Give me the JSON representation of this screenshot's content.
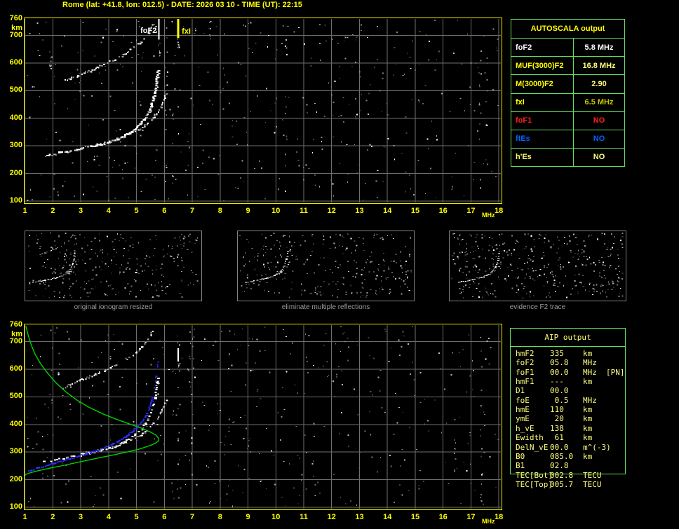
{
  "title": "Rome (lat: +41.8, lon: 012.5) - DATE: 2026 03 10 - TIME (UT): 22:15",
  "colors": {
    "background": "#000000",
    "accent_yellow": "#ffff00",
    "pale_yellow": "#ffff7f",
    "olive_yellow": "#c9c900",
    "red": "#ff2020",
    "blue": "#0066ff",
    "trace_blue": "#2b2bff",
    "profile_green": "#00d000",
    "table_border_green": "#62e062",
    "grid_gray": "#6f6f6f",
    "caption_gray": "#9c9c9c",
    "plot_border_yellow": "#ecec00"
  },
  "axes": {
    "x_ticks": [
      "1",
      "2",
      "3",
      "4",
      "5",
      "6",
      "7",
      "8",
      "9",
      "10",
      "11",
      "12",
      "13",
      "14",
      "15",
      "16",
      "17",
      "18"
    ],
    "x_unit": "MHz",
    "y_ticks": [
      "760",
      "700",
      "600",
      "500",
      "400",
      "300",
      "200",
      "100"
    ],
    "y_unit": "km"
  },
  "annotations": [
    {
      "label": "foF2",
      "f": 5.8,
      "color": "#ffffff",
      "side": "left"
    },
    {
      "label": "fxI",
      "f": 6.5,
      "color": "#ffff00",
      "side": "right"
    }
  ],
  "autoscala_table": {
    "title": "AUTOSCALA output",
    "rows": [
      {
        "label": "foF2",
        "value": "5.8 MHz",
        "label_color": "#ffffff",
        "value_color": "#ffffff"
      },
      {
        "label": "MUF(3000)F2",
        "value": "16.8 MHz",
        "label_color": "#ffff00",
        "value_color": "#ffff7f"
      },
      {
        "label": "M(3000)F2",
        "value": "2.90",
        "label_color": "#ffff00",
        "value_color": "#ffff7f"
      },
      {
        "label": "fxI",
        "value": "6.5 MHz",
        "label_color": "#ffff00",
        "value_color": "#c9c900"
      },
      {
        "label": "foF1",
        "value": "NO",
        "label_color": "#ff2020",
        "value_color": "#ff2020"
      },
      {
        "label": "ftEs",
        "value": "NO",
        "label_color": "#0066ff",
        "value_color": "#0066ff"
      },
      {
        "label": "h'Es",
        "value": "NO",
        "label_color": "#ffff66",
        "value_color": "#ffff7f"
      }
    ]
  },
  "thumbnails": [
    {
      "caption": "original ionogram resized"
    },
    {
      "caption": "eliminate multiple reflections"
    },
    {
      "caption": "evidence F2 trace"
    }
  ],
  "aip_table": {
    "title": "AIP output",
    "rows": [
      {
        "label": "hmF2",
        "value": "335",
        "unit": "km",
        "extra": ""
      },
      {
        "label": "foF2",
        "value": "05.8",
        "unit": "MHz",
        "extra": ""
      },
      {
        "label": "foF1",
        "value": "00.0",
        "unit": "MHz",
        "extra": "[PN]"
      },
      {
        "label": "hmF1",
        "value": "---",
        "unit": "km",
        "extra": ""
      },
      {
        "label": "D1",
        "value": "00.0",
        "unit": "",
        "extra": ""
      },
      {
        "label": "foE",
        "value": " 0.5",
        "unit": "MHz",
        "extra": ""
      },
      {
        "label": "hmE",
        "value": "110",
        "unit": "km",
        "extra": ""
      },
      {
        "label": "ymE",
        "value": " 20",
        "unit": "km",
        "extra": ""
      },
      {
        "label": "h_vE",
        "value": "138",
        "unit": "km",
        "extra": ""
      },
      {
        "label": "Ewidth",
        "value": " 61",
        "unit": "km",
        "extra": ""
      },
      {
        "label": "DelN_vE",
        "value": "00.0",
        "unit": "m^(-3)",
        "extra": ""
      },
      {
        "label": "B0",
        "value": "085.0",
        "unit": "km",
        "extra": ""
      },
      {
        "label": "B1",
        "value": "02.8",
        "unit": "",
        "extra": ""
      },
      {
        "label": "TEC[Bot]",
        "value": "002.8",
        "unit": "TECU",
        "extra": ""
      },
      {
        "label": "TEC[Top]",
        "value": "005.7",
        "unit": "TECU",
        "extra": ""
      }
    ]
  },
  "chart_data": {
    "type": "scatter",
    "x_axis": {
      "label": "MHz",
      "range": [
        1,
        18
      ]
    },
    "y_axis": {
      "label": "km",
      "range": [
        100,
        760
      ]
    },
    "grid": true,
    "markers": {
      "foF2_line_MHz": 5.8,
      "fxI_line_MHz": 6.5,
      "bottom_artifact_MHz": 6.5
    },
    "traces": {
      "f2_main": {
        "name": "F2 O-mode trace h'(f)",
        "points": [
          [
            1.65,
            266
          ],
          [
            1.9,
            271
          ],
          [
            2.2,
            277
          ],
          [
            2.5,
            282
          ],
          [
            2.8,
            288
          ],
          [
            3.1,
            294
          ],
          [
            3.4,
            301
          ],
          [
            3.7,
            308
          ],
          [
            4.0,
            316
          ],
          [
            4.25,
            325
          ],
          [
            4.5,
            336
          ],
          [
            4.7,
            348
          ],
          [
            4.9,
            362
          ],
          [
            5.1,
            380
          ],
          [
            5.25,
            398
          ],
          [
            5.4,
            422
          ],
          [
            5.5,
            448
          ],
          [
            5.58,
            475
          ],
          [
            5.64,
            502
          ],
          [
            5.68,
            528
          ],
          [
            5.71,
            552
          ],
          [
            5.73,
            572
          ]
        ]
      },
      "f2_x": {
        "name": "F2 X-mode branch",
        "points": [
          [
            3.0,
            296
          ],
          [
            3.4,
            304
          ],
          [
            3.8,
            312
          ],
          [
            4.2,
            322
          ],
          [
            4.5,
            333
          ],
          [
            4.8,
            346
          ],
          [
            5.1,
            361
          ],
          [
            5.35,
            379
          ],
          [
            5.55,
            399
          ],
          [
            5.72,
            421
          ],
          [
            5.85,
            444
          ],
          [
            5.95,
            466
          ],
          [
            6.03,
            488
          ]
        ]
      },
      "second_hop": {
        "name": "second reflection trace",
        "points": [
          [
            2.35,
            536
          ],
          [
            2.6,
            546
          ],
          [
            2.9,
            558
          ],
          [
            3.2,
            570
          ],
          [
            3.5,
            582
          ],
          [
            3.8,
            596
          ],
          [
            4.1,
            610
          ],
          [
            4.4,
            626
          ],
          [
            4.7,
            644
          ],
          [
            4.95,
            662
          ],
          [
            5.15,
            680
          ],
          [
            5.3,
            697
          ],
          [
            5.42,
            714
          ],
          [
            5.5,
            728
          ],
          [
            5.56,
            744
          ]
        ]
      },
      "f2_sparse_top": {
        "name": "sparse asymptote echoes",
        "points": [
          [
            5.73,
            515
          ],
          [
            5.75,
            540
          ],
          [
            5.77,
            562
          ],
          [
            5.79,
            582
          ]
        ]
      },
      "blue_fit": {
        "name": "AUTOSCALA fitted trace",
        "points": [
          [
            1.1,
            233
          ],
          [
            1.4,
            243
          ],
          [
            1.7,
            252
          ],
          [
            2.0,
            261
          ],
          [
            2.3,
            270
          ],
          [
            2.6,
            278
          ],
          [
            2.9,
            287
          ],
          [
            3.2,
            296
          ],
          [
            3.5,
            306
          ],
          [
            3.8,
            317
          ],
          [
            4.1,
            330
          ],
          [
            4.35,
            343
          ],
          [
            4.6,
            358
          ],
          [
            4.8,
            374
          ],
          [
            5.0,
            392
          ],
          [
            5.15,
            410
          ],
          [
            5.3,
            432
          ],
          [
            5.42,
            456
          ],
          [
            5.5,
            480
          ],
          [
            5.56,
            505
          ]
        ]
      },
      "blue_sparse": {
        "name": "fitted trace sparse top",
        "points": [
          [
            5.62,
            535
          ],
          [
            5.67,
            570
          ],
          [
            5.71,
            600
          ],
          [
            5.74,
            632
          ]
        ]
      },
      "green_profile": {
        "name": "electron density profile N(h)",
        "points": [
          [
            1.03,
            757
          ],
          [
            1.12,
            722
          ],
          [
            1.22,
            690
          ],
          [
            1.36,
            655
          ],
          [
            1.56,
            620
          ],
          [
            1.82,
            585
          ],
          [
            2.12,
            550
          ],
          [
            2.47,
            518
          ],
          [
            2.87,
            488
          ],
          [
            3.3,
            462
          ],
          [
            3.8,
            438
          ],
          [
            4.3,
            418
          ],
          [
            4.8,
            400
          ],
          [
            5.2,
            386
          ],
          [
            5.5,
            373
          ],
          [
            5.7,
            361
          ],
          [
            5.79,
            350
          ],
          [
            5.79,
            341
          ],
          [
            5.68,
            332
          ],
          [
            5.45,
            322
          ],
          [
            5.1,
            311
          ],
          [
            4.65,
            300
          ],
          [
            4.1,
            288
          ],
          [
            3.5,
            276
          ],
          [
            2.9,
            263
          ],
          [
            2.35,
            251
          ],
          [
            1.9,
            242
          ],
          [
            1.5,
            233
          ],
          [
            1.22,
            226
          ],
          [
            1.05,
            220
          ],
          [
            1.0,
            216
          ]
        ]
      }
    }
  }
}
